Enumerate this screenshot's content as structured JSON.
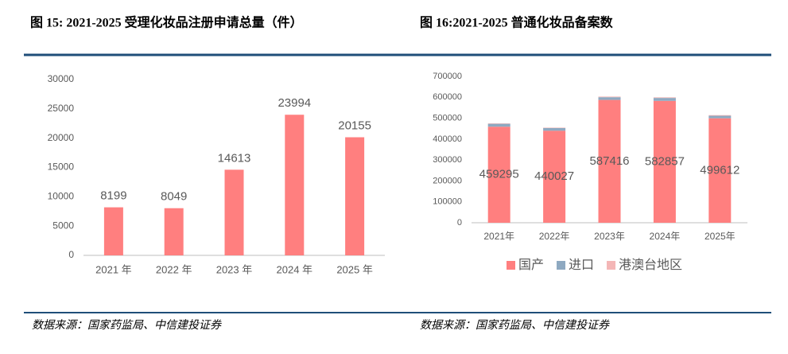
{
  "chart_data": [
    {
      "type": "bar",
      "title": "图 15: 2021-2025 受理化妆品注册申请总量（件）",
      "categories": [
        "2021 年",
        "2022 年",
        "2023 年",
        "2024 年",
        "2025 年"
      ],
      "values": [
        8199,
        8049,
        14613,
        23994,
        20155
      ],
      "color": "#ff7f7f",
      "ylim": [
        0,
        30000
      ],
      "yticks": [
        0,
        5000,
        10000,
        15000,
        20000,
        25000,
        30000
      ],
      "grid": false,
      "source": "数据来源：国家药监局、中信建投证券"
    },
    {
      "type": "stacked_bar",
      "title": "图 16:2021-2025 普通化妆品备案数",
      "categories": [
        "2021年",
        "2022年",
        "2023年",
        "2024年",
        "2025年"
      ],
      "series": [
        {
          "name": "国产",
          "color": "#ff7f7f",
          "values": [
            459295,
            440027,
            587416,
            582857,
            499612
          ]
        },
        {
          "name": "进口",
          "color": "#8ea9c1",
          "values": [
            14000,
            13000,
            13000,
            14000,
            12000
          ]
        },
        {
          "name": "港澳台地区",
          "color": "#f4b6b6",
          "values": [
            2000,
            2000,
            3000,
            3000,
            3000
          ]
        }
      ],
      "ylim": [
        0,
        700000
      ],
      "yticks": [
        0,
        100000,
        200000,
        300000,
        400000,
        500000,
        600000,
        700000
      ],
      "grid": false,
      "legend": "bottom",
      "source": "数据来源：国家药监局、中信建投证券"
    }
  ]
}
